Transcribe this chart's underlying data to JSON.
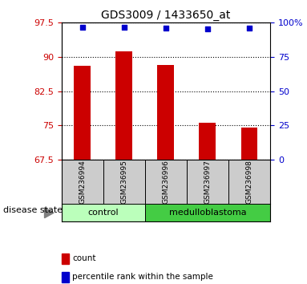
{
  "title": "GDS3009 / 1433650_at",
  "samples": [
    "GSM236994",
    "GSM236995",
    "GSM236996",
    "GSM236997",
    "GSM236998"
  ],
  "bar_values": [
    88.0,
    91.2,
    88.3,
    75.5,
    74.5
  ],
  "percentile_values": [
    96.5,
    96.5,
    96.0,
    95.2,
    96.3
  ],
  "bar_bottom": 67.5,
  "ylim_left": [
    67.5,
    97.5
  ],
  "ylim_right": [
    0,
    100
  ],
  "yticks_left": [
    67.5,
    75.0,
    82.5,
    90.0,
    97.5
  ],
  "yticks_right": [
    0,
    25,
    50,
    75,
    100
  ],
  "ytick_labels_right": [
    "0",
    "25",
    "50",
    "75",
    "100%"
  ],
  "bar_color": "#cc0000",
  "percentile_color": "#0000cc",
  "groups": [
    {
      "label": "control",
      "indices": [
        0,
        1
      ],
      "color": "#bbffbb"
    },
    {
      "label": "medulloblastoma",
      "indices": [
        2,
        3,
        4
      ],
      "color": "#44cc44"
    }
  ],
  "group_label_text": "disease state",
  "legend_items": [
    {
      "label": "count",
      "color": "#cc0000"
    },
    {
      "label": "percentile rank within the sample",
      "color": "#0000cc"
    }
  ],
  "tick_label_color_left": "#cc0000",
  "tick_label_color_right": "#0000cc",
  "dotted_line_color": "black",
  "sample_label_bg": "#cccccc",
  "bar_width": 0.4
}
